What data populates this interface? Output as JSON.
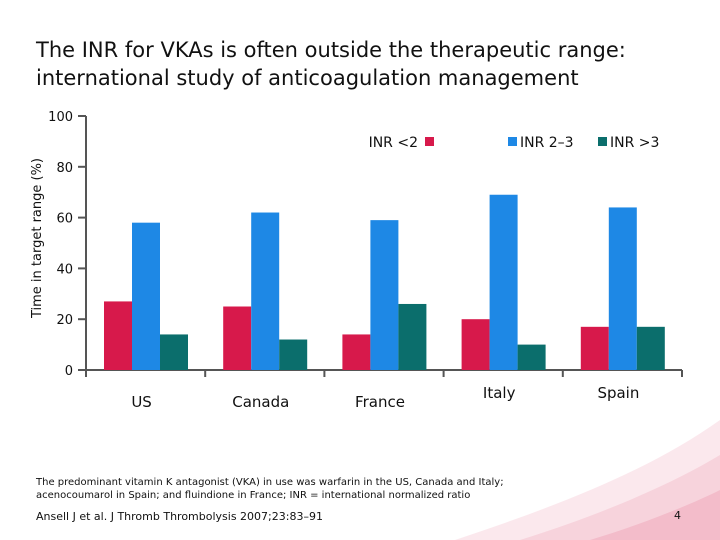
{
  "slide": {
    "title_line1": "The INR for VKAs is often outside the therapeutic range:",
    "title_line2": "international study of anticoagulation management",
    "footnote_line1": "The predominant vitamin K antagonist (VKA) in use was warfarin in the US, Canada and Italy;",
    "footnote_line2": "acenocoumarol in Spain; and fluindione in France; INR = international normalized ratio",
    "citation": "Ansell J et al. J Thromb Thrombolysis 2007;23:83–91",
    "page_number": "4"
  },
  "chart_data": {
    "type": "bar",
    "title": "",
    "xlabel": "",
    "ylabel": "Time in target range (%)",
    "ylim": [
      0,
      100
    ],
    "yticks": [
      0,
      20,
      40,
      60,
      80,
      100
    ],
    "categories": [
      "US",
      "Canada",
      "France",
      "Italy",
      "Spain"
    ],
    "series": [
      {
        "name": "INR <2",
        "color": "#d7194b",
        "values": [
          27,
          25,
          14,
          20,
          17
        ]
      },
      {
        "name": "INR 2–3",
        "color": "#1e88e5",
        "values": [
          58,
          62,
          59,
          69,
          64
        ]
      },
      {
        "name": "INR >3",
        "color": "#0b6e6c",
        "values": [
          14,
          12,
          26,
          10,
          17
        ]
      }
    ],
    "legend_position": "top-right",
    "grid": false
  }
}
